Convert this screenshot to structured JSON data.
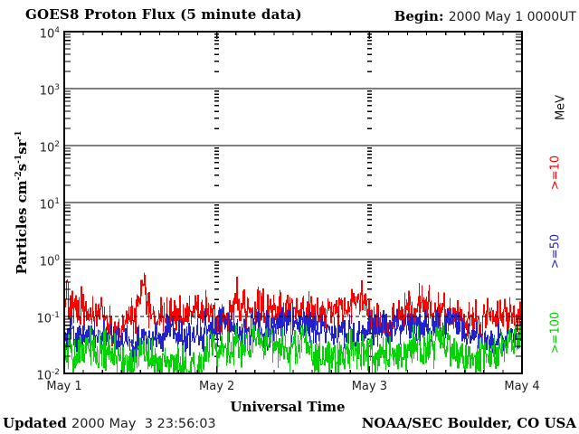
{
  "header": {
    "title": "GOES8 Proton Flux (5 minute data)",
    "begin_label": "Begin:",
    "begin_value": "2000 May 1 0000UT"
  },
  "footer": {
    "updated_label": "Updated",
    "updated_value": "2000 May  3 23:56:03",
    "credit": "NOAA/SEC Boulder, CO USA"
  },
  "chart_data": {
    "type": "line",
    "title": "GOES8 Proton Flux (5 minute data)",
    "xlabel": "Universal Time",
    "ylabel_parts": {
      "main1": "Particles cm",
      "sup1": "-2",
      "main2": "s",
      "sup2": "-1",
      "main3": "sr",
      "sup3": "-1"
    },
    "units_label": "MeV",
    "x_ticks": [
      "May 1",
      "May 2",
      "May 3",
      "May 4"
    ],
    "x_range_hours": [
      0,
      72
    ],
    "x_minor_tick_hours": 3,
    "day_boundary_hours": [
      24,
      48
    ],
    "ylim_log10": [
      -2,
      4
    ],
    "y_tick_base": "10",
    "y_tick_exponents": [
      "4",
      "3",
      "2",
      "1",
      "0",
      "-1",
      "-2"
    ],
    "grid": {
      "solid_decade_lines_log10": [
        3,
        2,
        1,
        0
      ],
      "dashed_decade_lines_log10": [
        -1
      ],
      "day_tick_column_hours": [
        24,
        48
      ]
    },
    "floor_log10": -2,
    "series": [
      {
        "name": "protons_ge_10_MeV",
        "label": ">=10",
        "color": "#ff0000",
        "threshold_mev": 10,
        "typical_flux": 0.1,
        "peak_flux": 0.85,
        "peak_time": "May 1 ~1200UT",
        "noise_sigma_log10": 0.155,
        "max_log10": -0.06,
        "trend_log10": [
          [
            0,
            -1.02
          ],
          [
            0.2,
            -0.6
          ],
          [
            0.4,
            -0.52
          ],
          [
            0.8,
            -0.95
          ],
          [
            3,
            -1.02
          ],
          [
            8,
            -1.0
          ],
          [
            10.8,
            -0.95
          ],
          [
            11.8,
            -0.6
          ],
          [
            12.4,
            -0.42
          ],
          [
            13.0,
            -0.55
          ],
          [
            14,
            -0.85
          ],
          [
            16,
            -1.0
          ],
          [
            24,
            -1.03
          ],
          [
            32,
            -0.98
          ],
          [
            40,
            -1.02
          ],
          [
            46,
            -0.98
          ],
          [
            52,
            -1.03
          ],
          [
            57,
            -0.96
          ],
          [
            64,
            -1.02
          ],
          [
            72,
            -1.0
          ]
        ]
      },
      {
        "name": "protons_ge_50_MeV",
        "label": ">=50",
        "color": "#2222cc",
        "threshold_mev": 50,
        "typical_flux": 0.05,
        "peak_flux": 0.14,
        "noise_sigma_log10": 0.15,
        "max_log10": -0.83,
        "trend_log10": [
          [
            0,
            -1.38
          ],
          [
            6,
            -1.33
          ],
          [
            12,
            -1.27
          ],
          [
            14,
            -1.32
          ],
          [
            24,
            -1.36
          ],
          [
            36,
            -1.32
          ],
          [
            48,
            -1.34
          ],
          [
            60,
            -1.3
          ],
          [
            72,
            -1.32
          ]
        ]
      },
      {
        "name": "protons_ge_100_MeV",
        "label": ">=100",
        "color": "#00d400",
        "threshold_mev": 100,
        "typical_flux": 0.02,
        "peak_flux": 0.07,
        "noise_sigma_log10": 0.17,
        "max_log10": -1.14,
        "trend_log10": [
          [
            0,
            -1.7
          ],
          [
            12,
            -1.66
          ],
          [
            24,
            -1.7
          ],
          [
            36,
            -1.67
          ],
          [
            48,
            -1.7
          ],
          [
            60,
            -1.65
          ],
          [
            72,
            -1.67
          ]
        ]
      }
    ]
  }
}
